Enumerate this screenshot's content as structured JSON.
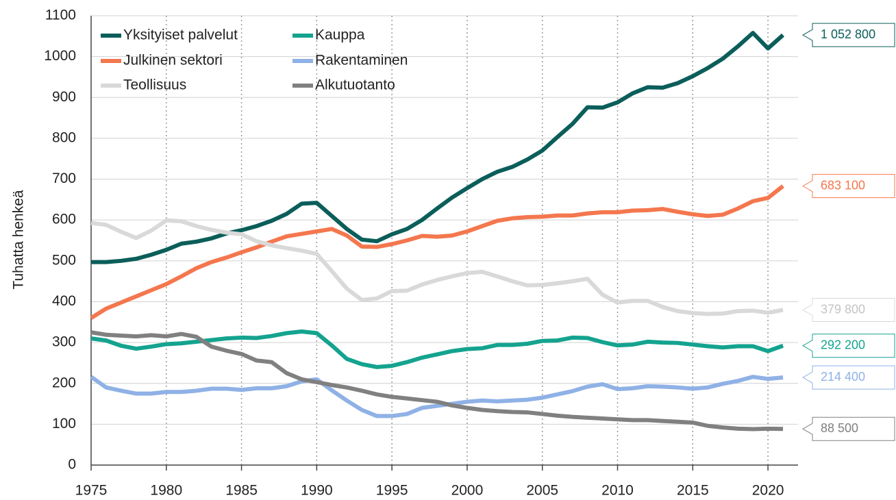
{
  "chart_data": {
    "type": "line",
    "y_label": "Tuhatta henkeä",
    "x": [
      1975,
      1976,
      1977,
      1978,
      1979,
      1980,
      1981,
      1982,
      1983,
      1984,
      1985,
      1986,
      1987,
      1988,
      1989,
      1990,
      1991,
      1992,
      1993,
      1994,
      1995,
      1996,
      1997,
      1998,
      1999,
      2000,
      2001,
      2002,
      2003,
      2004,
      2005,
      2006,
      2007,
      2008,
      2009,
      2010,
      2011,
      2012,
      2013,
      2014,
      2015,
      2016,
      2017,
      2018,
      2019,
      2020,
      2021
    ],
    "xlim": [
      1975,
      2022
    ],
    "xticks": [
      1975,
      1980,
      1985,
      1990,
      1995,
      2000,
      2005,
      2010,
      2015,
      2020
    ],
    "ylim": [
      0,
      1100
    ],
    "yticks": [
      0,
      100,
      200,
      300,
      400,
      500,
      600,
      700,
      800,
      900,
      1000,
      1100
    ],
    "grid": true,
    "legend": "upper left",
    "series": [
      {
        "name": "Yksityiset palvelut",
        "color": "#0b5e5a",
        "values": [
          497,
          497,
          500,
          505,
          515,
          527,
          542,
          547,
          555,
          567,
          575,
          585,
          598,
          615,
          640,
          642,
          610,
          578,
          552,
          548,
          565,
          578,
          600,
          628,
          655,
          678,
          700,
          718,
          730,
          748,
          770,
          803,
          835,
          876,
          875,
          888,
          910,
          925,
          924,
          935,
          952,
          972,
          995,
          1025,
          1058,
          1020,
          1052.8
        ],
        "value_labels": [
          null,
          null,
          null,
          null,
          null,
          null,
          null,
          null,
          null,
          null,
          null,
          null,
          null,
          null,
          null,
          null,
          null,
          null,
          null,
          null,
          null,
          null,
          null,
          null,
          null,
          null,
          null,
          null,
          null,
          null,
          null,
          null,
          null,
          null,
          null,
          null,
          null,
          null,
          null,
          null,
          null,
          null,
          null,
          null,
          null,
          null,
          "1 052 800"
        ]
      },
      {
        "name": "Julkinen sektori",
        "color": "#f4774e",
        "values": [
          360,
          383,
          398,
          413,
          428,
          443,
          462,
          482,
          497,
          508,
          521,
          533,
          547,
          560,
          566,
          572,
          578,
          562,
          535,
          534,
          541,
          550,
          561,
          559,
          562,
          572,
          585,
          598,
          604,
          607,
          608,
          611,
          611,
          616,
          619,
          619,
          623,
          624,
          627,
          620,
          614,
          610,
          613,
          628,
          646,
          654,
          683.1
        ],
        "value_labels": [
          null,
          null,
          null,
          null,
          null,
          null,
          null,
          null,
          null,
          null,
          null,
          null,
          null,
          null,
          null,
          null,
          null,
          null,
          null,
          null,
          null,
          null,
          null,
          null,
          null,
          null,
          null,
          null,
          null,
          null,
          null,
          null,
          null,
          null,
          null,
          null,
          null,
          null,
          null,
          null,
          null,
          null,
          null,
          null,
          null,
          null,
          "683 100"
        ]
      },
      {
        "name": "Teollisuus",
        "color": "#d9d9d9",
        "values": [
          593,
          588,
          571,
          556,
          574,
          599,
          597,
          585,
          576,
          569,
          565,
          548,
          538,
          531,
          525,
          517,
          475,
          432,
          404,
          408,
          426,
          427,
          442,
          453,
          462,
          470,
          473,
          462,
          450,
          440,
          441,
          445,
          450,
          456,
          417,
          398,
          402,
          402,
          387,
          377,
          372,
          370,
          371,
          377,
          378,
          373,
          379.8
        ],
        "value_labels": [
          null,
          null,
          null,
          null,
          null,
          null,
          null,
          null,
          null,
          null,
          null,
          null,
          null,
          null,
          null,
          null,
          null,
          null,
          null,
          null,
          null,
          null,
          null,
          null,
          null,
          null,
          null,
          null,
          null,
          null,
          null,
          null,
          null,
          null,
          null,
          null,
          null,
          null,
          null,
          null,
          null,
          null,
          null,
          null,
          null,
          null,
          "379 800"
        ]
      },
      {
        "name": "Kauppa",
        "color": "#14a38f",
        "values": [
          310,
          305,
          292,
          285,
          290,
          296,
          298,
          302,
          306,
          310,
          312,
          311,
          316,
          323,
          327,
          323,
          293,
          260,
          247,
          240,
          243,
          252,
          263,
          271,
          279,
          284,
          286,
          294,
          294,
          297,
          304,
          305,
          312,
          311,
          301,
          293,
          295,
          302,
          300,
          299,
          295,
          291,
          288,
          291,
          291,
          279,
          292.2
        ],
        "value_labels": [
          null,
          null,
          null,
          null,
          null,
          null,
          null,
          null,
          null,
          null,
          null,
          null,
          null,
          null,
          null,
          null,
          null,
          null,
          null,
          null,
          null,
          null,
          null,
          null,
          null,
          null,
          null,
          null,
          null,
          null,
          null,
          null,
          null,
          null,
          null,
          null,
          null,
          null,
          null,
          null,
          null,
          null,
          null,
          null,
          null,
          null,
          "292 200"
        ]
      },
      {
        "name": "Rakentaminen",
        "color": "#8fb1e6",
        "values": [
          216,
          190,
          182,
          175,
          175,
          179,
          179,
          182,
          187,
          187,
          184,
          188,
          188,
          193,
          205,
          210,
          183,
          158,
          135,
          120,
          120,
          125,
          140,
          145,
          150,
          155,
          158,
          156,
          158,
          160,
          165,
          173,
          181,
          192,
          198,
          186,
          188,
          193,
          192,
          190,
          187,
          190,
          199,
          206,
          216,
          211,
          214.4
        ],
        "value_labels": [
          null,
          null,
          null,
          null,
          null,
          null,
          null,
          null,
          null,
          null,
          null,
          null,
          null,
          null,
          null,
          null,
          null,
          null,
          null,
          null,
          null,
          null,
          null,
          null,
          null,
          null,
          null,
          null,
          null,
          null,
          null,
          null,
          null,
          null,
          null,
          null,
          null,
          null,
          null,
          null,
          null,
          null,
          null,
          null,
          null,
          null,
          "214 400"
        ]
      },
      {
        "name": "Alkutuotanto",
        "color": "#808080",
        "values": [
          325,
          319,
          317,
          315,
          318,
          315,
          321,
          314,
          290,
          280,
          272,
          256,
          252,
          225,
          210,
          203,
          196,
          190,
          182,
          173,
          167,
          163,
          159,
          155,
          146,
          140,
          135,
          132,
          130,
          129,
          125,
          121,
          118,
          116,
          114,
          112,
          110,
          110,
          108,
          106,
          104,
          96,
          92,
          89,
          88,
          89,
          88.5
        ],
        "value_labels": [
          null,
          null,
          null,
          null,
          null,
          null,
          null,
          null,
          null,
          null,
          null,
          null,
          null,
          null,
          null,
          null,
          null,
          null,
          null,
          null,
          null,
          null,
          null,
          null,
          null,
          null,
          null,
          null,
          null,
          null,
          null,
          null,
          null,
          null,
          null,
          null,
          null,
          null,
          null,
          null,
          null,
          null,
          null,
          null,
          null,
          null,
          "88 500"
        ]
      }
    ]
  }
}
